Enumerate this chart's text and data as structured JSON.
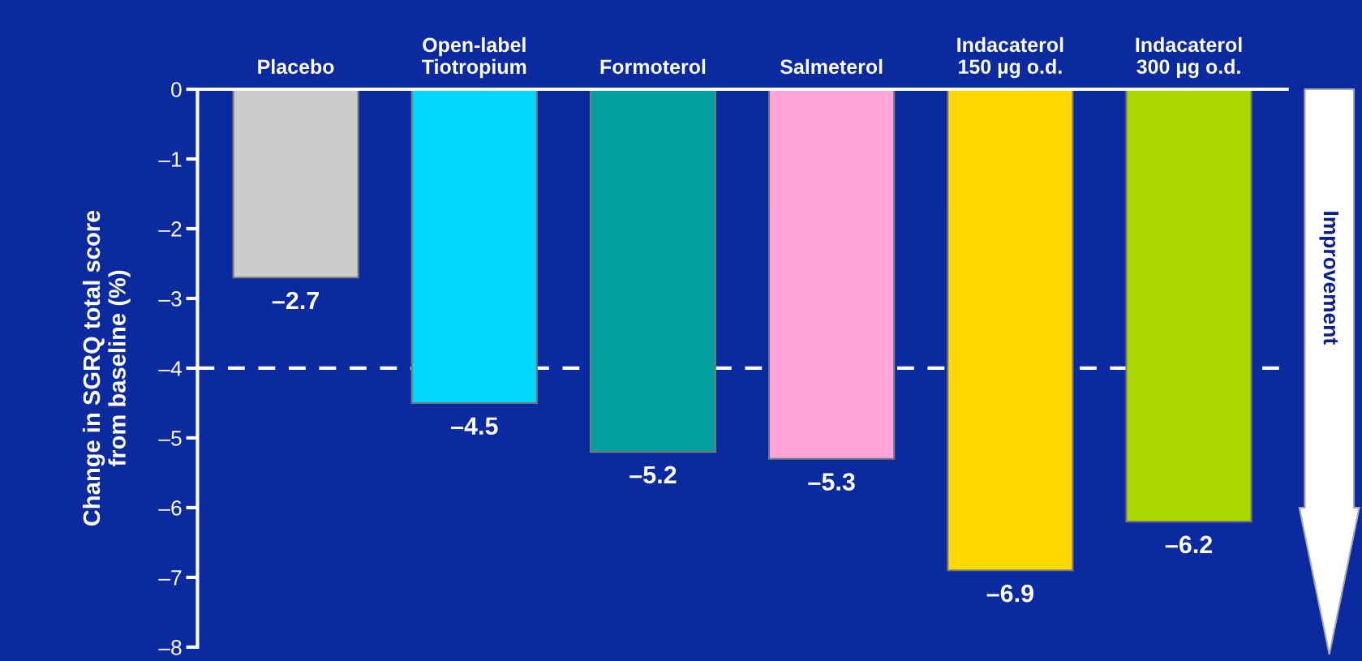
{
  "chart_data": {
    "type": "bar",
    "ylabel": "Change in SGRQ total score\nfrom baseline (%)",
    "categories": [
      "Placebo",
      "Open-label\nTiotropium",
      "Formoterol",
      "Salmeterol",
      "Indacaterol\n150 µg o.d.",
      "Indacaterol\n300 µg o.d."
    ],
    "values": [
      -2.7,
      -4.5,
      -5.2,
      -5.3,
      -6.9,
      -6.2
    ],
    "colors": [
      "#cccccc",
      "#00d8ff",
      "#00a0a0",
      "#ffa4d8",
      "#ffd800",
      "#a8d800"
    ],
    "value_labels": [
      "–2.7",
      "–4.5",
      "–5.2",
      "–5.3",
      "–6.9",
      "–6.2"
    ],
    "ylim": [
      -8,
      0
    ],
    "yticks": [
      0,
      {
        "value": -1,
        "label": "–1"
      },
      {
        "value": -2,
        "label": "–2"
      },
      {
        "value": -3,
        "label": "–3"
      },
      {
        "value": -4,
        "label": "–4"
      },
      {
        "value": -5,
        "label": "–5"
      },
      {
        "value": -6,
        "label": "–6"
      },
      {
        "value": -7,
        "label": "–7"
      },
      {
        "value": -8,
        "label": "–8"
      }
    ],
    "ref_lines": [
      {
        "axis": "y",
        "value": -4,
        "color": "#ffffff",
        "line_style": "dashed"
      }
    ],
    "annotations": [
      "Improvement"
    ],
    "grid": false,
    "legend": false
  }
}
